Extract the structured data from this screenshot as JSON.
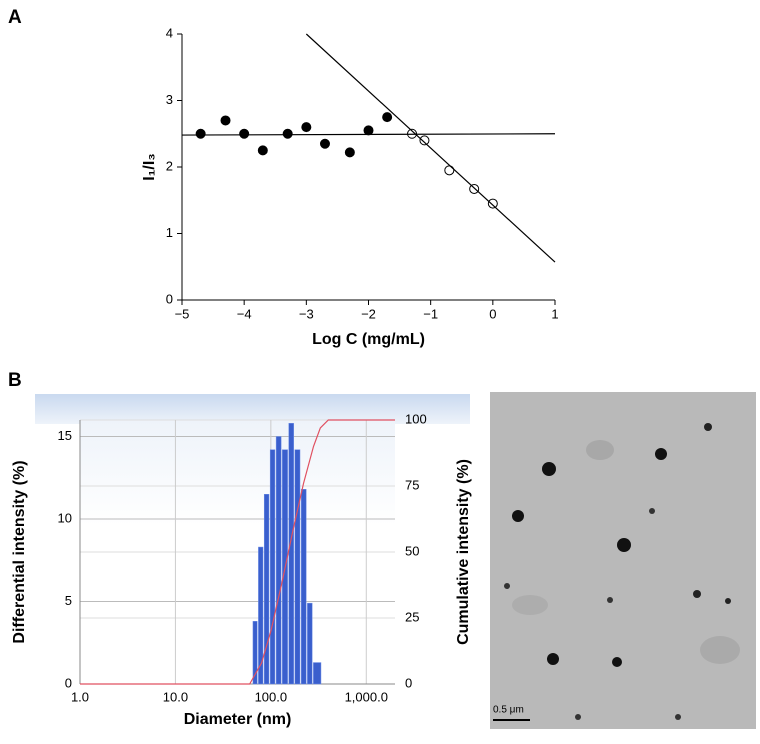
{
  "chart_data": [
    {
      "type": "scatter",
      "panel_label": "A",
      "x_label": "Log C (mg/mL)",
      "y_label": "I₁/I₃",
      "xlim": [
        -5,
        1
      ],
      "ylim": [
        0,
        4
      ],
      "xticks": [
        {
          "value": -5,
          "label": "−5"
        },
        {
          "value": -4,
          "label": "−4"
        },
        {
          "value": -3,
          "label": "−3"
        },
        {
          "value": -2,
          "label": "−2"
        },
        {
          "value": -1,
          "label": "−1"
        },
        0,
        1
      ],
      "yticks": [
        0,
        1,
        2,
        3,
        4
      ],
      "series": [
        {
          "marker": "filled",
          "color": "#000000",
          "x": [
            -4.7,
            -4.3,
            -4.0,
            -3.7,
            -3.3,
            -3.0,
            -2.7,
            -2.3,
            -2.0,
            -1.7
          ],
          "values": [
            2.5,
            2.7,
            2.5,
            2.25,
            2.5,
            2.6,
            2.35,
            2.22,
            2.55,
            2.75
          ]
        },
        {
          "marker": "open",
          "color": "#000000",
          "x": [
            -1.3,
            -1.1,
            -0.7,
            -0.3,
            0.0
          ],
          "values": [
            2.5,
            2.4,
            1.95,
            1.67,
            1.45
          ]
        },
        {
          "marker": "line",
          "color": "#000000",
          "x": [
            -5,
            1
          ],
          "values": [
            2.48,
            2.5
          ]
        },
        {
          "marker": "line",
          "color": "#000000",
          "x": [
            -3,
            1
          ],
          "values": [
            4,
            0.57
          ]
        }
      ]
    },
    {
      "type": "histogram",
      "panel_label": "B",
      "x_label": "Diameter (nm)",
      "y_label": "Differential intensity (%)",
      "y2_label": "Cumulative intensity (%)",
      "log_x": true,
      "xlim": [
        1,
        2000
      ],
      "ylim": [
        0,
        16
      ],
      "y2lim": [
        0,
        100
      ],
      "xticks": [
        {
          "value": 1,
          "label": "1.0"
        },
        {
          "value": 10,
          "label": "10.0"
        },
        {
          "value": 100,
          "label": "100.0"
        },
        {
          "value": 1000,
          "label": "1,000.0"
        }
      ],
      "yticks": [
        0,
        5,
        10,
        15
      ],
      "y2ticks": [
        0,
        25,
        50,
        75,
        100
      ],
      "y2_color": "#2255bb",
      "bins": [
        64,
        73,
        84,
        97,
        112,
        130,
        152,
        176,
        205,
        238,
        275,
        340
      ],
      "counts": [
        3.8,
        8.3,
        11.5,
        14.2,
        15.0,
        14.2,
        15.8,
        14.2,
        11.8,
        4.9,
        1.3
      ],
      "bar_color": "#3a5fcd",
      "cumulative": {
        "axis": "y2",
        "color": "#e05060",
        "x": [
          1,
          60,
          80,
          100,
          130,
          170,
          220,
          280,
          330,
          400,
          2000
        ],
        "values": [
          0,
          0,
          8,
          20,
          38,
          58,
          76,
          90,
          97,
          100,
          100
        ]
      }
    }
  ],
  "image": {
    "scale_bar": "0.5 μm"
  }
}
